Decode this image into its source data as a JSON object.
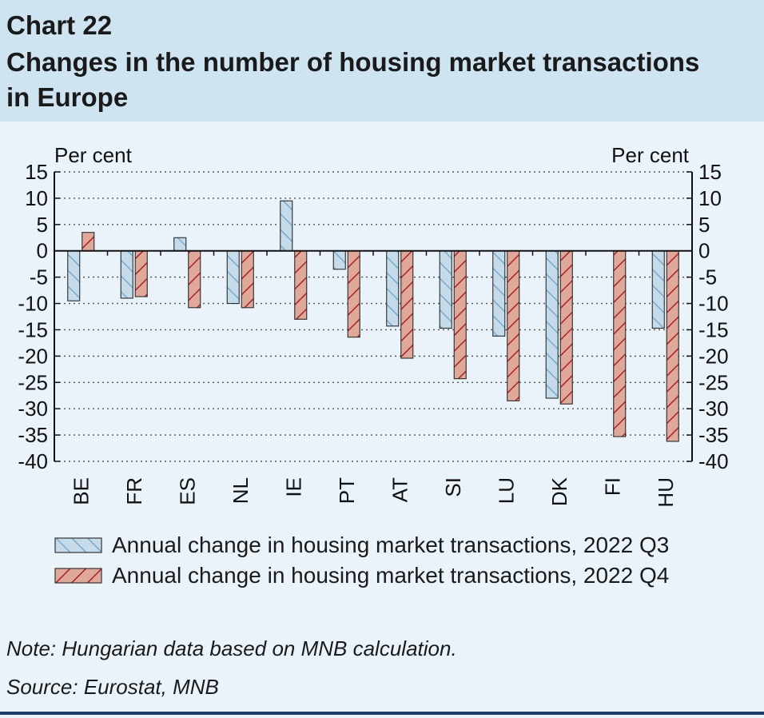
{
  "title": {
    "number": "Chart 22",
    "main": "Changes in the number of housing market transactions in Europe"
  },
  "chart_data": {
    "type": "bar",
    "ylabel_left": "Per cent",
    "ylabel_right": "Per cent",
    "ylim": [
      -40,
      15
    ],
    "yticks": [
      15,
      10,
      5,
      0,
      -5,
      -10,
      -15,
      -20,
      -25,
      -30,
      -35,
      -40
    ],
    "grid": true,
    "categories": [
      "BE",
      "FR",
      "ES",
      "NL",
      "IE",
      "PT",
      "AT",
      "SI",
      "LU",
      "DK",
      "FI",
      "HU"
    ],
    "series": [
      {
        "name": "Annual change in housing market transactions, 2022 Q3",
        "color": "#c5dbea",
        "stripe": "#7ba9cc",
        "values": [
          -9.5,
          -9,
          2.5,
          -10,
          9.5,
          -3.5,
          -14.3,
          -14.7,
          -16.2,
          -28,
          null,
          -14.7
        ]
      },
      {
        "name": "Annual change in housing market transactions, 2022 Q4",
        "color": "#dfa898",
        "stripe": "#a8232a",
        "values": [
          3.5,
          -8.7,
          -10.8,
          -10.8,
          -13,
          -16.4,
          -20.4,
          -24.3,
          -28.5,
          -29.1,
          -35.3,
          -36.2
        ]
      }
    ]
  },
  "note": "Note: Hungarian data based on MNB calculation.",
  "source": "Source: Eurostat, MNB"
}
